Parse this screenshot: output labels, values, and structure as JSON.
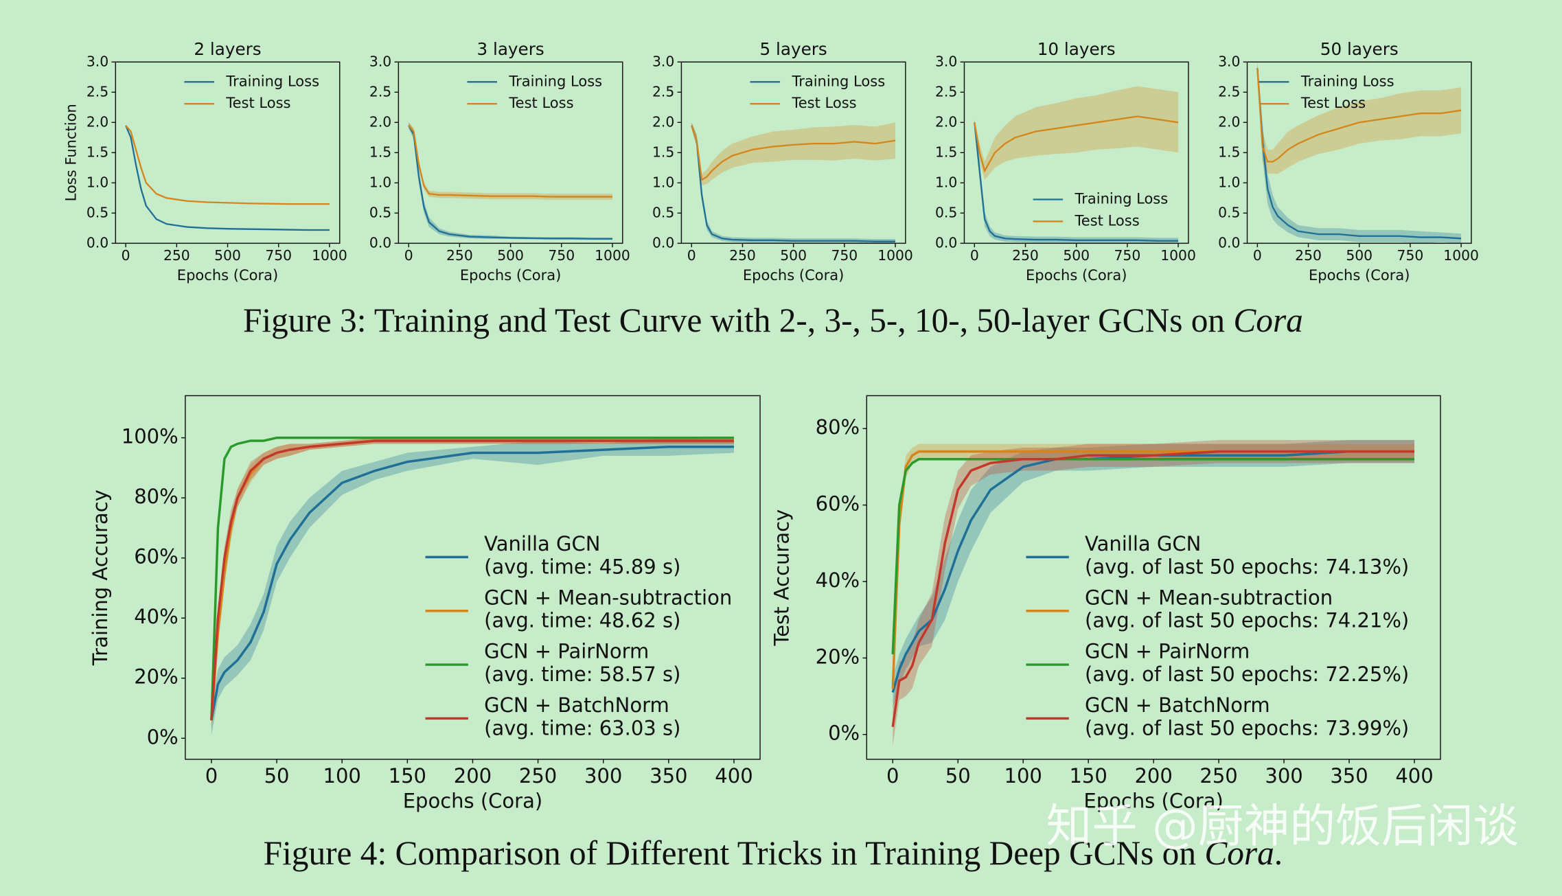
{
  "chart_data": [
    {
      "type": "line",
      "title": "2 layers",
      "xlabel": "Epochs (Cora)",
      "ylabel": "Loss Function",
      "legend": "upper right",
      "x": [
        0,
        25,
        50,
        75,
        100,
        150,
        200,
        300,
        400,
        500,
        600,
        700,
        800,
        900,
        1000
      ],
      "xlim": [
        -50,
        1050
      ],
      "xticks": [
        0,
        250,
        500,
        750,
        1000
      ],
      "ylim": [
        0,
        3
      ],
      "yticks": [
        {
          "value": 0,
          "label": "0.0"
        },
        0.5,
        {
          "value": 1,
          "label": "1.0"
        },
        1.5,
        {
          "value": 2,
          "label": "2.0"
        },
        2.5,
        {
          "value": 3,
          "label": "3.0"
        }
      ],
      "series": [
        {
          "name": "Training Loss",
          "color": "#1f6f96",
          "values": [
            1.95,
            1.75,
            1.3,
            0.9,
            0.62,
            0.4,
            0.32,
            0.27,
            0.25,
            0.24,
            0.235,
            0.23,
            0.225,
            0.22,
            0.22
          ]
        },
        {
          "name": "Test Loss",
          "color": "#d4861c",
          "values": [
            1.95,
            1.85,
            1.55,
            1.25,
            1.0,
            0.82,
            0.75,
            0.7,
            0.68,
            0.67,
            0.66,
            0.655,
            0.65,
            0.65,
            0.65
          ]
        }
      ]
    },
    {
      "type": "line",
      "title": "3 layers",
      "xlabel": "Epochs (Cora)",
      "legend": "upper right",
      "x": [
        0,
        25,
        50,
        75,
        100,
        150,
        200,
        300,
        400,
        500,
        600,
        700,
        800,
        900,
        1000
      ],
      "xlim": [
        -50,
        1050
      ],
      "xticks": [
        0,
        250,
        500,
        750,
        1000
      ],
      "ylim": [
        0,
        3
      ],
      "yticks": [
        {
          "value": 0,
          "label": "0.0"
        },
        0.5,
        {
          "value": 1,
          "label": "1.0"
        },
        1.5,
        {
          "value": 2,
          "label": "2.0"
        },
        2.5,
        {
          "value": 3,
          "label": "3.0"
        }
      ],
      "series": [
        {
          "name": "Training Loss",
          "color": "#1f6f96",
          "values": [
            1.95,
            1.8,
            1.1,
            0.6,
            0.35,
            0.2,
            0.15,
            0.11,
            0.1,
            0.09,
            0.085,
            0.08,
            0.08,
            0.075,
            0.075
          ],
          "band": [
            0.05,
            0.08,
            0.1,
            0.1,
            0.08,
            0.05,
            0.04,
            0.03,
            0.03,
            0.02,
            0.02,
            0.02,
            0.02,
            0.02,
            0.02
          ]
        },
        {
          "name": "Test Loss",
          "color": "#d4861c",
          "values": [
            1.95,
            1.85,
            1.3,
            0.95,
            0.82,
            0.8,
            0.8,
            0.79,
            0.78,
            0.78,
            0.78,
            0.77,
            0.77,
            0.77,
            0.77
          ],
          "band": [
            0.05,
            0.06,
            0.08,
            0.06,
            0.05,
            0.05,
            0.05,
            0.05,
            0.05,
            0.05,
            0.05,
            0.05,
            0.05,
            0.05,
            0.05
          ]
        }
      ]
    },
    {
      "type": "line",
      "title": "5 layers",
      "xlabel": "Epochs (Cora)",
      "legend": "upper right",
      "x": [
        0,
        25,
        50,
        75,
        100,
        150,
        200,
        300,
        400,
        500,
        600,
        700,
        800,
        900,
        1000
      ],
      "xlim": [
        -50,
        1050
      ],
      "xticks": [
        0,
        250,
        500,
        750,
        1000
      ],
      "ylim": [
        0,
        3
      ],
      "yticks": [
        {
          "value": 0,
          "label": "0.0"
        },
        0.5,
        {
          "value": 1,
          "label": "1.0"
        },
        1.5,
        {
          "value": 2,
          "label": "2.0"
        },
        2.5,
        {
          "value": 3,
          "label": "3.0"
        }
      ],
      "series": [
        {
          "name": "Training Loss",
          "color": "#1f6f96",
          "values": [
            1.95,
            1.7,
            0.8,
            0.3,
            0.15,
            0.08,
            0.06,
            0.05,
            0.05,
            0.04,
            0.04,
            0.04,
            0.04,
            0.03,
            0.03
          ],
          "band": [
            0.05,
            0.1,
            0.1,
            0.08,
            0.05,
            0.04,
            0.04,
            0.04,
            0.04,
            0.04,
            0.04,
            0.04,
            0.04,
            0.04,
            0.04
          ]
        },
        {
          "name": "Test Loss",
          "color": "#d4861c",
          "values": [
            1.95,
            1.7,
            1.05,
            1.1,
            1.2,
            1.35,
            1.45,
            1.55,
            1.6,
            1.63,
            1.65,
            1.65,
            1.68,
            1.65,
            1.7
          ],
          "band": [
            0.05,
            0.1,
            0.1,
            0.12,
            0.15,
            0.18,
            0.2,
            0.22,
            0.25,
            0.25,
            0.27,
            0.28,
            0.28,
            0.28,
            0.3
          ]
        }
      ]
    },
    {
      "type": "line",
      "title": "10 layers",
      "xlabel": "Epochs (Cora)",
      "legend": "lower right",
      "x": [
        0,
        25,
        50,
        75,
        100,
        150,
        200,
        300,
        400,
        500,
        600,
        700,
        800,
        900,
        1000
      ],
      "xlim": [
        -50,
        1050
      ],
      "xticks": [
        0,
        250,
        500,
        750,
        1000
      ],
      "ylim": [
        0,
        3
      ],
      "yticks": [
        {
          "value": 0,
          "label": "0.0"
        },
        0.5,
        {
          "value": 1,
          "label": "1.0"
        },
        1.5,
        {
          "value": 2,
          "label": "2.0"
        },
        2.5,
        {
          "value": 3,
          "label": "3.0"
        }
      ],
      "series": [
        {
          "name": "Training Loss",
          "color": "#1f6f96",
          "values": [
            2.0,
            1.2,
            0.4,
            0.2,
            0.12,
            0.08,
            0.07,
            0.06,
            0.06,
            0.05,
            0.05,
            0.05,
            0.05,
            0.04,
            0.04
          ],
          "band": [
            0.05,
            0.15,
            0.12,
            0.08,
            0.06,
            0.05,
            0.05,
            0.05,
            0.05,
            0.05,
            0.05,
            0.05,
            0.05,
            0.05,
            0.05
          ]
        },
        {
          "name": "Test Loss",
          "color": "#d4861c",
          "values": [
            2.0,
            1.5,
            1.2,
            1.35,
            1.5,
            1.65,
            1.75,
            1.85,
            1.9,
            1.95,
            2.0,
            2.05,
            2.1,
            2.05,
            2.0
          ],
          "band": [
            0.05,
            0.15,
            0.15,
            0.2,
            0.25,
            0.3,
            0.35,
            0.4,
            0.42,
            0.45,
            0.45,
            0.48,
            0.5,
            0.5,
            0.5
          ]
        }
      ]
    },
    {
      "type": "line",
      "title": "50 layers",
      "xlabel": "Epochs (Cora)",
      "legend": "upper left",
      "x": [
        0,
        25,
        50,
        75,
        100,
        150,
        200,
        300,
        400,
        500,
        600,
        700,
        800,
        900,
        1000
      ],
      "xlim": [
        -50,
        1050
      ],
      "xticks": [
        0,
        250,
        500,
        750,
        1000
      ],
      "ylim": [
        0,
        3
      ],
      "yticks": [
        {
          "value": 0,
          "label": "0.0"
        },
        0.5,
        {
          "value": 1,
          "label": "1.0"
        },
        1.5,
        {
          "value": 2,
          "label": "2.0"
        },
        2.5,
        {
          "value": 3,
          "label": "3.0"
        }
      ],
      "series": [
        {
          "name": "Training Loss",
          "color": "#1f6f96",
          "values": [
            2.9,
            1.7,
            0.9,
            0.6,
            0.45,
            0.3,
            0.2,
            0.15,
            0.15,
            0.12,
            0.12,
            0.12,
            0.1,
            0.1,
            0.08
          ],
          "band": [
            0.1,
            0.3,
            0.25,
            0.2,
            0.15,
            0.12,
            0.1,
            0.1,
            0.1,
            0.1,
            0.1,
            0.1,
            0.1,
            0.08,
            0.08
          ]
        },
        {
          "name": "Test Loss",
          "color": "#d4861c",
          "values": [
            2.9,
            1.6,
            1.35,
            1.35,
            1.4,
            1.55,
            1.65,
            1.8,
            1.9,
            2.0,
            2.05,
            2.1,
            2.15,
            2.15,
            2.2
          ],
          "band": [
            0.1,
            0.25,
            0.2,
            0.2,
            0.25,
            0.3,
            0.3,
            0.32,
            0.35,
            0.35,
            0.35,
            0.38,
            0.38,
            0.38,
            0.38
          ]
        }
      ]
    },
    {
      "type": "line",
      "xlabel": "Epochs (Cora)",
      "ylabel": "Training Accuracy",
      "legend": "lower right",
      "x": [
        0,
        5,
        10,
        15,
        20,
        30,
        40,
        50,
        60,
        75,
        100,
        125,
        150,
        200,
        250,
        300,
        350,
        400
      ],
      "xlim": [
        -20,
        420
      ],
      "xticks": [
        0,
        50,
        100,
        150,
        200,
        250,
        300,
        350,
        400
      ],
      "ylim": [
        -7,
        114
      ],
      "yticks": [
        {
          "value": 0,
          "label": "0%"
        },
        {
          "value": 20,
          "label": "20%"
        },
        {
          "value": 40,
          "label": "40%"
        },
        {
          "value": 60,
          "label": "60%"
        },
        {
          "value": 80,
          "label": "80%"
        },
        {
          "value": 100,
          "label": "100%"
        }
      ],
      "series": [
        {
          "name": "Vanilla GCN",
          "note": "(avg. time: 45.89 s)",
          "color": "#1f6f96",
          "values": [
            6,
            18,
            22,
            24,
            26,
            32,
            42,
            58,
            66,
            75,
            85,
            89,
            92,
            95,
            95,
            96,
            97,
            97
          ],
          "band": [
            5,
            5,
            5,
            5,
            5,
            6,
            6,
            6,
            6,
            5,
            4,
            3,
            3,
            2,
            4,
            2,
            3,
            2
          ]
        },
        {
          "name": "GCN + Mean-subtraction",
          "note": "(avg. time: 48.62 s)",
          "color": "#d4861c",
          "values": [
            6,
            35,
            55,
            70,
            80,
            88,
            93,
            95,
            96,
            97,
            98,
            99,
            99,
            99,
            99,
            99,
            99,
            99
          ],
          "band": [
            3,
            4,
            4,
            4,
            3,
            3,
            2,
            2,
            2,
            1,
            1,
            1,
            1,
            1,
            1,
            1,
            1,
            1
          ]
        },
        {
          "name": "GCN + PairNorm",
          "note": "(avg. time: 58.57 s)",
          "color": "#2a9a2a",
          "values": [
            6,
            70,
            93,
            97,
            98,
            99,
            99,
            100,
            100,
            100,
            100,
            100,
            100,
            100,
            100,
            100,
            100,
            100
          ]
        },
        {
          "name": "GCN + BatchNorm",
          "note": "(avg. time: 63.03 s)",
          "color": "#c0392b",
          "values": [
            6,
            40,
            60,
            72,
            80,
            89,
            93,
            95,
            96,
            97,
            98,
            99,
            99,
            99,
            99,
            99,
            99,
            99
          ],
          "band": [
            3,
            4,
            4,
            4,
            3,
            3,
            2,
            2,
            2,
            1,
            1,
            1,
            1,
            1,
            1,
            1,
            1,
            1
          ]
        }
      ]
    },
    {
      "type": "line",
      "xlabel": "Epochs (Cora)",
      "ylabel": "Test Accuracy",
      "legend": "lower right",
      "x": [
        0,
        5,
        10,
        15,
        20,
        30,
        40,
        50,
        60,
        75,
        100,
        125,
        150,
        200,
        250,
        300,
        350,
        400
      ],
      "xlim": [
        -20,
        420
      ],
      "xticks": [
        0,
        50,
        100,
        150,
        200,
        250,
        300,
        350,
        400
      ],
      "ylim": [
        -6.5,
        88.6
      ],
      "yticks": [
        {
          "value": 0,
          "label": "0%"
        },
        {
          "value": 20,
          "label": "20%"
        },
        {
          "value": 40,
          "label": "40%"
        },
        {
          "value": 60,
          "label": "60%"
        },
        {
          "value": 80,
          "label": "80%"
        }
      ],
      "series": [
        {
          "name": "Vanilla GCN",
          "note": "(avg. of last 50 epochs: 74.13%)",
          "color": "#1f6f96",
          "values": [
            11,
            17,
            21,
            24,
            27,
            30,
            38,
            48,
            56,
            64,
            70,
            72,
            72,
            73,
            73,
            73,
            74,
            74
          ],
          "band": [
            4,
            4,
            4,
            4,
            4,
            6,
            8,
            8,
            8,
            6,
            4,
            3,
            3,
            3,
            3,
            3,
            3,
            3
          ]
        },
        {
          "name": "GCN + Mean-subtraction",
          "note": "(avg. of last 50 epochs: 74.21%)",
          "color": "#d4861c",
          "values": [
            12,
            55,
            70,
            73,
            74,
            74,
            74,
            74,
            74,
            74,
            74,
            74,
            74,
            74,
            74,
            74,
            74,
            74
          ],
          "band": [
            2,
            3,
            3,
            2,
            2,
            2,
            2,
            2,
            2,
            2,
            2,
            2,
            2,
            2,
            2,
            2,
            2,
            2
          ]
        },
        {
          "name": "GCN + PairNorm",
          "note": "(avg. of last 50 epochs: 72.25%)",
          "color": "#2a9a2a",
          "values": [
            21,
            60,
            69,
            71,
            72,
            72,
            72,
            72,
            72,
            72,
            72,
            72,
            72,
            72,
            72,
            72,
            72,
            72
          ]
        },
        {
          "name": "GCN + BatchNorm",
          "note": "(avg. of last 50 epochs: 73.99%)",
          "color": "#c0392b",
          "values": [
            2,
            14,
            15,
            18,
            24,
            30,
            50,
            64,
            69,
            71,
            72,
            72,
            73,
            73,
            74,
            74,
            74,
            74
          ],
          "band": [
            5,
            5,
            5,
            6,
            6,
            7,
            7,
            5,
            4,
            3,
            3,
            3,
            3,
            3,
            3,
            3,
            3,
            3
          ]
        }
      ]
    }
  ],
  "captions": [
    {
      "before": "Figure 3: Training and Test Curve with 2-, 3-, 5-, 10-, 50-layer GCNs on ",
      "em": "Cora"
    },
    {
      "before": "Figure 4: Comparison of Different Tricks in Training Deep GCNs on ",
      "em": "Cora",
      "after": "."
    }
  ],
  "watermark": "知乎 @厨神的饭后闲谈"
}
